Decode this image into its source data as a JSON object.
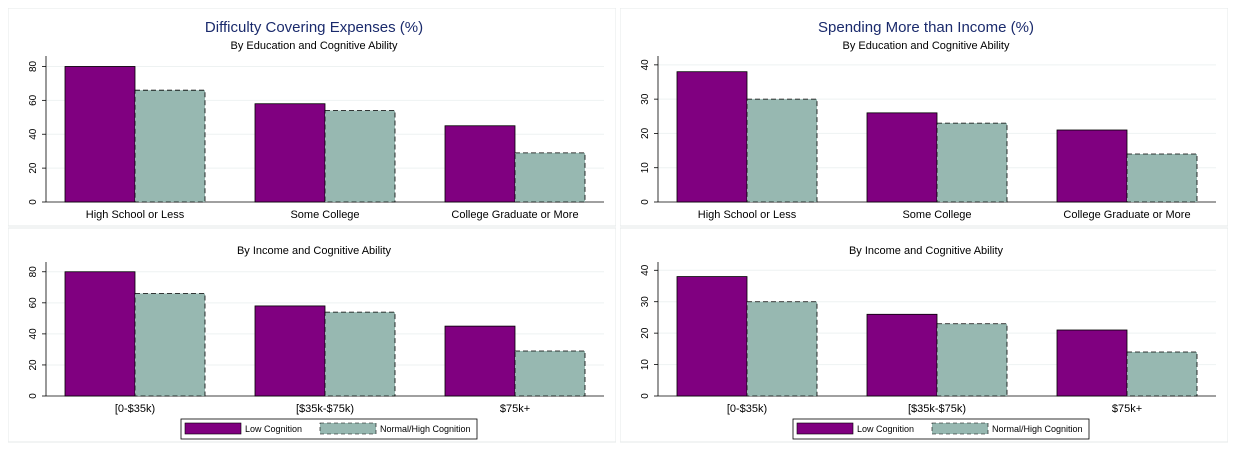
{
  "colors": {
    "low": "#800080",
    "normal": "#97b8b1",
    "grid": "#eef2f2",
    "plot_bg": "#ffffff",
    "panel_border": "#e6eaea"
  },
  "legend": {
    "low_label": "Low Cognition",
    "normal_label": "Normal/High Cognition"
  },
  "chart_data": [
    {
      "type": "bar",
      "title": "Difficulty Covering Expenses (%)",
      "subtitle": "By Education and Cognitive Ability",
      "categories": [
        "High School or Less",
        "Some College",
        "College Graduate or More"
      ],
      "series": [
        {
          "name": "Low Cognition",
          "values": [
            80,
            58,
            45
          ]
        },
        {
          "name": "Normal/High Cognition",
          "values": [
            66,
            54,
            29
          ]
        }
      ],
      "yticks": [
        0,
        20,
        40,
        60,
        80
      ],
      "ylim": [
        0,
        85
      ],
      "grid": true
    },
    {
      "type": "bar",
      "title": "",
      "subtitle": "By Income and Cognitive Ability",
      "categories": [
        "[0-$35k)",
        "[$35k-$75k)",
        "$75k+"
      ],
      "series": [
        {
          "name": "Low Cognition",
          "values": [
            80,
            58,
            45
          ]
        },
        {
          "name": "Normal/High Cognition",
          "values": [
            66,
            54,
            29
          ]
        }
      ],
      "yticks": [
        0,
        20,
        40,
        60,
        80
      ],
      "ylim": [
        0,
        85
      ],
      "grid": true
    },
    {
      "type": "bar",
      "title": "Spending More than Income (%)",
      "subtitle": "By Education and Cognitive Ability",
      "categories": [
        "High School or Less",
        "Some College",
        "College Graduate or More"
      ],
      "series": [
        {
          "name": "Low Cognition",
          "values": [
            38,
            26,
            21
          ]
        },
        {
          "name": "Normal/High Cognition",
          "values": [
            30,
            23,
            14
          ]
        }
      ],
      "yticks": [
        0,
        10,
        20,
        30,
        40
      ],
      "ylim": [
        0,
        42
      ],
      "grid": true
    },
    {
      "type": "bar",
      "title": "",
      "subtitle": "By Income and Cognitive Ability",
      "categories": [
        "[0-$35k)",
        "[$35k-$75k)",
        "$75k+"
      ],
      "series": [
        {
          "name": "Low Cognition",
          "values": [
            38,
            26,
            21
          ]
        },
        {
          "name": "Normal/High Cognition",
          "values": [
            30,
            23,
            14
          ]
        }
      ],
      "yticks": [
        0,
        10,
        20,
        30,
        40
      ],
      "ylim": [
        0,
        42
      ],
      "grid": true
    }
  ]
}
